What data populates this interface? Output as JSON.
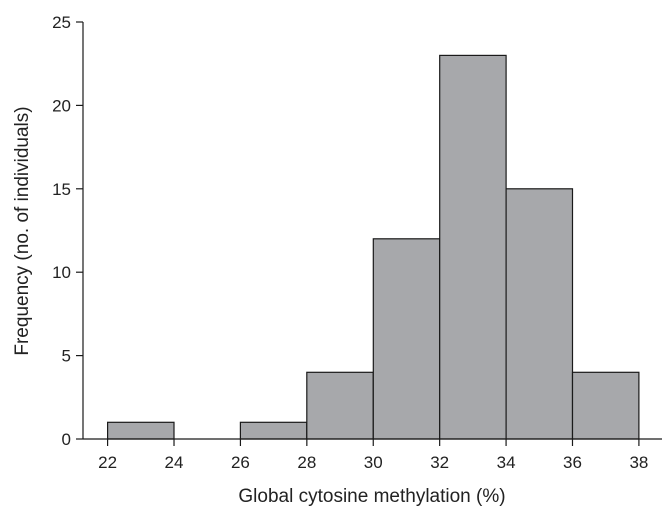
{
  "chart_data": {
    "type": "bar",
    "subtype": "histogram",
    "title": "",
    "xlabel": "Global cytosine methylation (%)",
    "ylabel": "Frequency (no. of individuals)",
    "bins": [
      {
        "start": 22,
        "end": 24,
        "value": 1
      },
      {
        "start": 24,
        "end": 26,
        "value": 0
      },
      {
        "start": 26,
        "end": 28,
        "value": 1
      },
      {
        "start": 28,
        "end": 30,
        "value": 4
      },
      {
        "start": 30,
        "end": 32,
        "value": 12
      },
      {
        "start": 32,
        "end": 34,
        "value": 23
      },
      {
        "start": 34,
        "end": 36,
        "value": 15
      },
      {
        "start": 36,
        "end": 38,
        "value": 4
      }
    ],
    "xlim": [
      21,
      39
    ],
    "ylim": [
      0,
      25
    ],
    "xticks": [
      "22",
      "24",
      "26",
      "28",
      "30",
      "32",
      "34",
      "36",
      "38"
    ],
    "yticks": [
      "0",
      "5",
      "10",
      "15",
      "20",
      "25"
    ],
    "grid": false,
    "legend": "none",
    "colors": {
      "bar_fill": "#a7a8ab",
      "bar_stroke": "#1a1a1a",
      "axis": "#1a1a1a"
    }
  }
}
